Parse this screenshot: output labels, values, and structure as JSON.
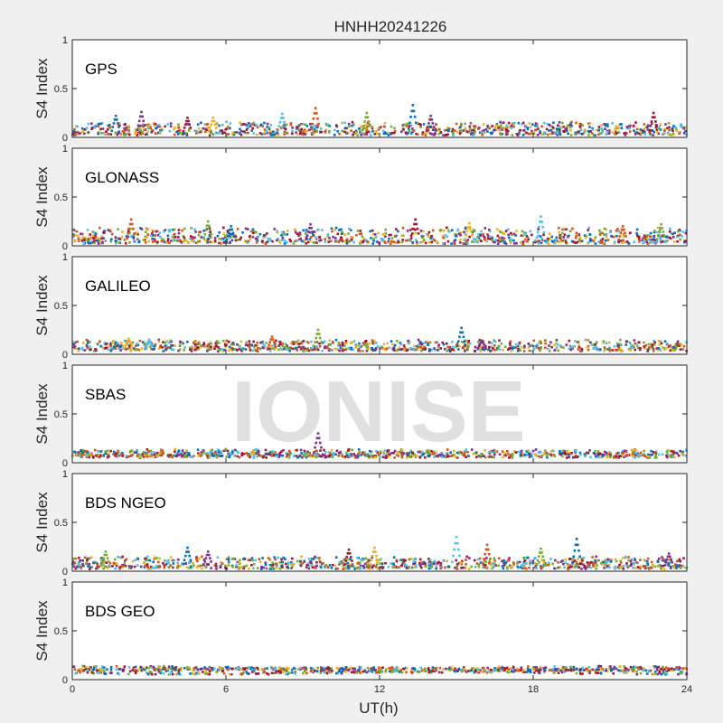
{
  "figure": {
    "title": "HNHH20241226",
    "watermark": "IONISE",
    "xlabel": "UT(h)"
  },
  "chart_data": [
    {
      "type": "scatter",
      "panel_label": "GPS",
      "ylabel": "S4 Index",
      "xlim": [
        0,
        24
      ],
      "ylim": [
        0,
        1
      ],
      "xticks": [
        0,
        6,
        12,
        18,
        24
      ],
      "yticks": [
        0,
        0.5,
        1
      ],
      "ytick_labels": [
        "0",
        "0.5",
        "1"
      ],
      "typical_range": [
        0.03,
        0.15
      ],
      "peaks": [
        {
          "x": 1.7,
          "y": 0.22
        },
        {
          "x": 2.7,
          "y": 0.26
        },
        {
          "x": 4.5,
          "y": 0.2
        },
        {
          "x": 5.5,
          "y": 0.2
        },
        {
          "x": 8.2,
          "y": 0.24
        },
        {
          "x": 9.5,
          "y": 0.3
        },
        {
          "x": 11.5,
          "y": 0.25
        },
        {
          "x": 13.3,
          "y": 0.33
        },
        {
          "x": 14.0,
          "y": 0.22
        },
        {
          "x": 22.7,
          "y": 0.25
        }
      ]
    },
    {
      "type": "scatter",
      "panel_label": "GLONASS",
      "ylabel": "S4 Index",
      "xlim": [
        0,
        24
      ],
      "ylim": [
        0,
        1
      ],
      "xticks": [
        0,
        6,
        12,
        18,
        24
      ],
      "yticks": [
        0,
        0.5,
        1
      ],
      "ytick_labels": [
        "0",
        "0.5",
        "1"
      ],
      "typical_range": [
        0.03,
        0.18
      ],
      "peaks": [
        {
          "x": 2.3,
          "y": 0.27
        },
        {
          "x": 5.3,
          "y": 0.25
        },
        {
          "x": 6.2,
          "y": 0.2
        },
        {
          "x": 9.3,
          "y": 0.22
        },
        {
          "x": 13.4,
          "y": 0.27
        },
        {
          "x": 15.5,
          "y": 0.23
        },
        {
          "x": 18.3,
          "y": 0.3
        },
        {
          "x": 21.5,
          "y": 0.2
        },
        {
          "x": 23.0,
          "y": 0.22
        }
      ]
    },
    {
      "type": "scatter",
      "panel_label": "GALILEO",
      "ylabel": "S4 Index",
      "xlim": [
        0,
        24
      ],
      "ylim": [
        0,
        1
      ],
      "xticks": [
        0,
        6,
        12,
        18,
        24
      ],
      "yticks": [
        0,
        0.5,
        1
      ],
      "ytick_labels": [
        "0",
        "0.5",
        "1"
      ],
      "typical_range": [
        0.04,
        0.14
      ],
      "peaks": [
        {
          "x": 2.2,
          "y": 0.16
        },
        {
          "x": 3.0,
          "y": 0.15
        },
        {
          "x": 7.8,
          "y": 0.18
        },
        {
          "x": 9.6,
          "y": 0.25
        },
        {
          "x": 15.2,
          "y": 0.27
        },
        {
          "x": 16.0,
          "y": 0.14
        }
      ]
    },
    {
      "type": "scatter",
      "panel_label": "SBAS",
      "ylabel": "S4 Index",
      "xlim": [
        0,
        24
      ],
      "ylim": [
        0,
        1
      ],
      "xticks": [
        0,
        6,
        12,
        18,
        24
      ],
      "yticks": [
        0,
        0.5,
        1
      ],
      "ytick_labels": [
        "0",
        "0.5",
        "1"
      ],
      "typical_range": [
        0.06,
        0.13
      ],
      "peaks": [
        {
          "x": 9.6,
          "y": 0.3
        }
      ]
    },
    {
      "type": "scatter",
      "panel_label": "BDS NGEO",
      "ylabel": "S4 Index",
      "xlim": [
        0,
        24
      ],
      "ylim": [
        0,
        1
      ],
      "xticks": [
        0,
        6,
        12,
        18,
        24
      ],
      "yticks": [
        0,
        0.5,
        1
      ],
      "ytick_labels": [
        "0",
        "0.5",
        "1"
      ],
      "typical_range": [
        0.03,
        0.14
      ],
      "peaks": [
        {
          "x": 1.3,
          "y": 0.2
        },
        {
          "x": 4.5,
          "y": 0.24
        },
        {
          "x": 5.3,
          "y": 0.2
        },
        {
          "x": 10.8,
          "y": 0.22
        },
        {
          "x": 11.8,
          "y": 0.24
        },
        {
          "x": 15.0,
          "y": 0.35
        },
        {
          "x": 16.2,
          "y": 0.27
        },
        {
          "x": 18.3,
          "y": 0.23
        },
        {
          "x": 19.7,
          "y": 0.33
        },
        {
          "x": 23.3,
          "y": 0.18
        }
      ]
    },
    {
      "type": "scatter",
      "panel_label": "BDS GEO",
      "ylabel": "S4 Index",
      "xlim": [
        0,
        24
      ],
      "ylim": [
        0,
        1
      ],
      "xticks": [
        0,
        6,
        12,
        18,
        24
      ],
      "yticks": [
        0,
        0.5,
        1
      ],
      "ytick_labels": [
        "0",
        "0.5",
        "1"
      ],
      "typical_range": [
        0.06,
        0.14
      ],
      "bands": [
        0.1,
        0.12,
        0.09,
        0.07,
        0.11
      ]
    }
  ],
  "colors": {
    "series": [
      "#0072BD",
      "#D95319",
      "#EDB120",
      "#7E2F8E",
      "#77AC30",
      "#4DBEEE",
      "#A2142F"
    ],
    "axes_bg": "#ffffff",
    "figure_bg": "#f0f0f0",
    "axis": "#262626",
    "watermark": "#d6d6d6"
  }
}
